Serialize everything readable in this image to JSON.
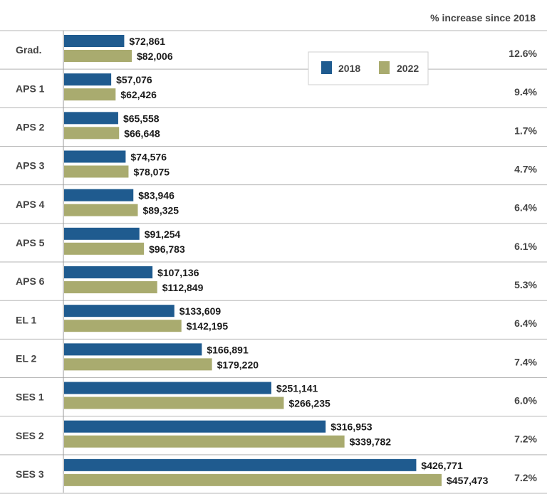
{
  "chart_data": {
    "type": "bar",
    "orientation": "horizontal",
    "column_header": "% increase since 2018",
    "categories": [
      "Grad.",
      "APS 1",
      "APS 2",
      "APS 3",
      "APS 4",
      "APS  5",
      "APS 6",
      "EL 1",
      "EL 2",
      "SES 1",
      "SES 2",
      "SES 3"
    ],
    "series": [
      {
        "name": "2018",
        "color": "#1f5b8f",
        "values": [
          72861,
          57076,
          65558,
          74576,
          83946,
          91254,
          107136,
          133609,
          166891,
          251141,
          316953,
          426771
        ],
        "labels": [
          "$72,861",
          "$57,076",
          "$65,558",
          "$74,576",
          "$83,946",
          "$91,254",
          "$107,136",
          "$133,609",
          "$166,891",
          "$251,141",
          "$316,953",
          "$426,771"
        ]
      },
      {
        "name": "2022",
        "color": "#a9ab6f",
        "values": [
          82006,
          62426,
          66648,
          78075,
          89325,
          96783,
          112849,
          142195,
          179220,
          266235,
          339782,
          457473
        ],
        "labels": [
          "$82,006",
          "$62,426",
          "$66,648",
          "$78,075",
          "$89,325",
          "$96,783",
          "$112,849",
          "$142,195",
          "$179,220",
          "$266,235",
          "$339,782",
          "$457,473"
        ]
      }
    ],
    "pct_increase": [
      "12.6%",
      "9.4%",
      "1.7%",
      "4.7%",
      "6.4%",
      "6.1%",
      "5.3%",
      "6.4%",
      "7.4%",
      "6.0%",
      "7.2%",
      "7.2%"
    ],
    "legend": [
      "2018",
      "2022"
    ],
    "legend_position": "top-middle",
    "xlim": [
      0,
      500000
    ],
    "grid": false
  }
}
